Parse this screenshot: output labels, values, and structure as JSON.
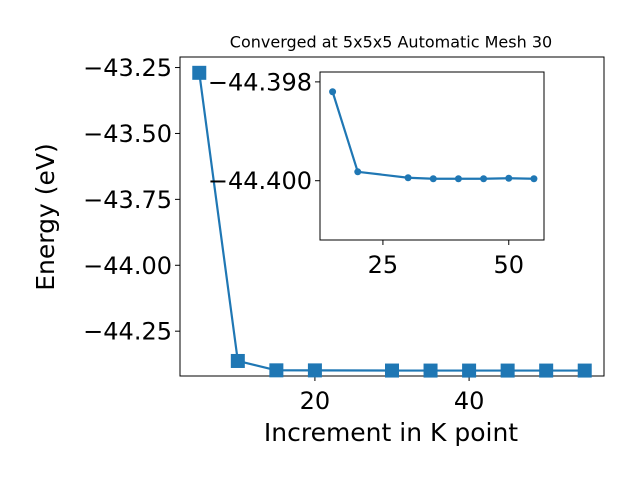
{
  "chart_data": [
    {
      "type": "line",
      "title": "Converged at 5x5x5 Automatic Mesh 30",
      "xlabel": "Increment in K point",
      "ylabel": "Energy (eV)",
      "color": "#1f77b4",
      "marker": "square",
      "grid": false,
      "xlim": [
        2.5,
        57.5
      ],
      "ylim": [
        -44.42,
        -43.21
      ],
      "xticks": [
        20,
        40
      ],
      "xtick_labels": [
        "20",
        "40"
      ],
      "yticks": [
        -43.25,
        -43.5,
        -43.75,
        -44.0,
        -44.25
      ],
      "ytick_labels": [
        "−43.25",
        "−43.50",
        "−43.75",
        "−44.00",
        "−44.25"
      ],
      "x": [
        5,
        10,
        15,
        20,
        30,
        35,
        40,
        45,
        50,
        55
      ],
      "y": [
        -43.27,
        -44.363,
        -44.3985,
        -44.3987,
        -44.3993,
        -44.3994,
        -44.3994,
        -44.3994,
        -44.3994,
        -44.3994
      ]
    },
    {
      "type": "line",
      "title": "",
      "xlabel": "",
      "ylabel": "",
      "color": "#1f77b4",
      "marker": "circle",
      "grid": false,
      "xlim": [
        12.5,
        57.0
      ],
      "ylim": [
        -44.4012,
        -44.3978
      ],
      "xticks": [
        25,
        50
      ],
      "xtick_labels": [
        "25",
        "50"
      ],
      "yticks": [
        -44.4,
        -44.398
      ],
      "ytick_labels": [
        "−44.400",
        "−44.398"
      ],
      "x": [
        15,
        20,
        30,
        35,
        40,
        45,
        50,
        55
      ],
      "y": [
        -44.3982,
        -44.39982,
        -44.39994,
        -44.39996,
        -44.39996,
        -44.39996,
        -44.39995,
        -44.39996
      ]
    }
  ]
}
